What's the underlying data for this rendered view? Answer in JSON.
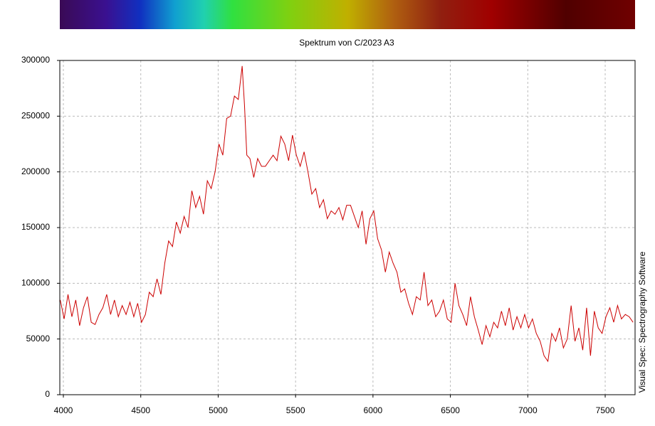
{
  "chart_data": {
    "type": "line",
    "title": "Spektrum von C/2023 A3",
    "credit": "Visual Spec: Spectrography Software",
    "grid": true,
    "xlim": [
      3977,
      7693
    ],
    "xticks": [
      4000,
      4500,
      5000,
      5500,
      6000,
      6500,
      7000,
      7500
    ],
    "ylim": [
      0,
      300000
    ],
    "yticks": [
      0,
      50000,
      100000,
      150000,
      200000,
      250000,
      300000
    ],
    "x": [
      3980,
      4005,
      4030,
      4055,
      4080,
      4105,
      4130,
      4155,
      4180,
      4205,
      4230,
      4255,
      4280,
      4305,
      4330,
      4355,
      4380,
      4405,
      4430,
      4455,
      4480,
      4505,
      4530,
      4555,
      4580,
      4605,
      4630,
      4655,
      4680,
      4705,
      4730,
      4755,
      4780,
      4805,
      4830,
      4855,
      4880,
      4905,
      4930,
      4955,
      4980,
      5005,
      5030,
      5055,
      5080,
      5105,
      5130,
      5155,
      5170,
      5185,
      5205,
      5230,
      5255,
      5280,
      5305,
      5330,
      5355,
      5380,
      5405,
      5430,
      5455,
      5480,
      5505,
      5530,
      5555,
      5580,
      5605,
      5630,
      5655,
      5680,
      5705,
      5730,
      5755,
      5780,
      5805,
      5830,
      5855,
      5880,
      5905,
      5930,
      5955,
      5980,
      6005,
      6030,
      6055,
      6080,
      6105,
      6130,
      6155,
      6180,
      6205,
      6230,
      6255,
      6280,
      6305,
      6330,
      6355,
      6380,
      6405,
      6430,
      6455,
      6480,
      6505,
      6530,
      6555,
      6580,
      6605,
      6630,
      6655,
      6680,
      6705,
      6730,
      6755,
      6780,
      6805,
      6830,
      6855,
      6880,
      6905,
      6930,
      6955,
      6980,
      7005,
      7030,
      7055,
      7080,
      7105,
      7130,
      7155,
      7180,
      7205,
      7230,
      7255,
      7280,
      7305,
      7330,
      7355,
      7380,
      7405,
      7430,
      7455,
      7480,
      7505,
      7530,
      7555,
      7580,
      7605,
      7630,
      7655,
      7680
    ],
    "series": [
      {
        "name": "Spektrum",
        "color": "#cc0000",
        "values": [
          85000,
          68000,
          90000,
          70000,
          85000,
          62000,
          78000,
          88000,
          65000,
          63000,
          72000,
          78000,
          90000,
          72000,
          85000,
          70000,
          80000,
          72000,
          83000,
          70000,
          82000,
          65000,
          72000,
          92000,
          88000,
          104000,
          90000,
          118000,
          138000,
          133000,
          155000,
          145000,
          160000,
          150000,
          183000,
          168000,
          178000,
          162000,
          192000,
          185000,
          200000,
          225000,
          215000,
          248000,
          250000,
          268000,
          265000,
          295000,
          260000,
          215000,
          212000,
          195000,
          212000,
          205000,
          205000,
          210000,
          215000,
          210000,
          232000,
          225000,
          210000,
          233000,
          215000,
          205000,
          218000,
          200000,
          180000,
          185000,
          168000,
          175000,
          158000,
          165000,
          162000,
          168000,
          157000,
          170000,
          170000,
          160000,
          150000,
          165000,
          135000,
          158000,
          165000,
          140000,
          130000,
          110000,
          128000,
          118000,
          110000,
          92000,
          95000,
          82000,
          72000,
          88000,
          85000,
          110000,
          80000,
          85000,
          70000,
          75000,
          85000,
          68000,
          65000,
          100000,
          80000,
          72000,
          62000,
          88000,
          70000,
          58000,
          45000,
          62000,
          52000,
          65000,
          60000,
          75000,
          62000,
          78000,
          58000,
          70000,
          60000,
          72000,
          60000,
          68000,
          55000,
          48000,
          35000,
          30000,
          55000,
          48000,
          60000,
          42000,
          50000,
          80000,
          48000,
          60000,
          40000,
          78000,
          35000,
          75000,
          60000,
          55000,
          70000,
          78000,
          65000,
          80000,
          68000,
          72000,
          70000,
          65000
        ]
      }
    ]
  }
}
